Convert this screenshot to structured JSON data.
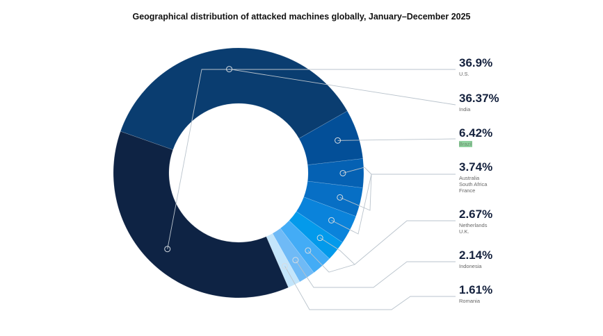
{
  "chart_data": {
    "type": "pie",
    "donut": true,
    "title": "Geographical distribution of attacked machines globally, January–December 2025",
    "slices": [
      {
        "label": "India",
        "value": 36.37,
        "color": "#0a3d70"
      },
      {
        "label": "Brazil",
        "value": 6.42,
        "color": "#034f98"
      },
      {
        "label": "Australia",
        "value": 3.74,
        "color": "#0561b3"
      },
      {
        "label": "South Africa",
        "value": 3.74,
        "color": "#076fc5"
      },
      {
        "label": "France",
        "value": 3.74,
        "color": "#0a83db"
      },
      {
        "label": "Netherlands",
        "value": 2.67,
        "color": "#039aeb"
      },
      {
        "label": "U.K.",
        "value": 2.67,
        "color": "#43acf6"
      },
      {
        "label": "Indonesia",
        "value": 2.14,
        "color": "#6fbaf6"
      },
      {
        "label": "Romania",
        "value": 1.61,
        "color": "#c3e5fb"
      },
      {
        "label": "U.S.",
        "value": 36.9,
        "color": "#0e2344"
      }
    ],
    "legend_groups": [
      {
        "value_label": "36.9%",
        "names": [
          "U.S."
        ]
      },
      {
        "value_label": "36.37%",
        "names": [
          "India"
        ]
      },
      {
        "value_label": "6.42%",
        "names": [
          "Brazil"
        ],
        "highlighted": true
      },
      {
        "value_label": "3.74%",
        "names": [
          "Australia",
          "South Africa",
          "France"
        ]
      },
      {
        "value_label": "2.67%",
        "names": [
          "Netherlands",
          "U.K."
        ]
      },
      {
        "value_label": "2.14%",
        "names": [
          "Indonesia"
        ]
      },
      {
        "value_label": "1.61%",
        "names": [
          "Romania"
        ]
      }
    ],
    "legend_placement": "right",
    "highlight_color": "#8fd19e"
  }
}
